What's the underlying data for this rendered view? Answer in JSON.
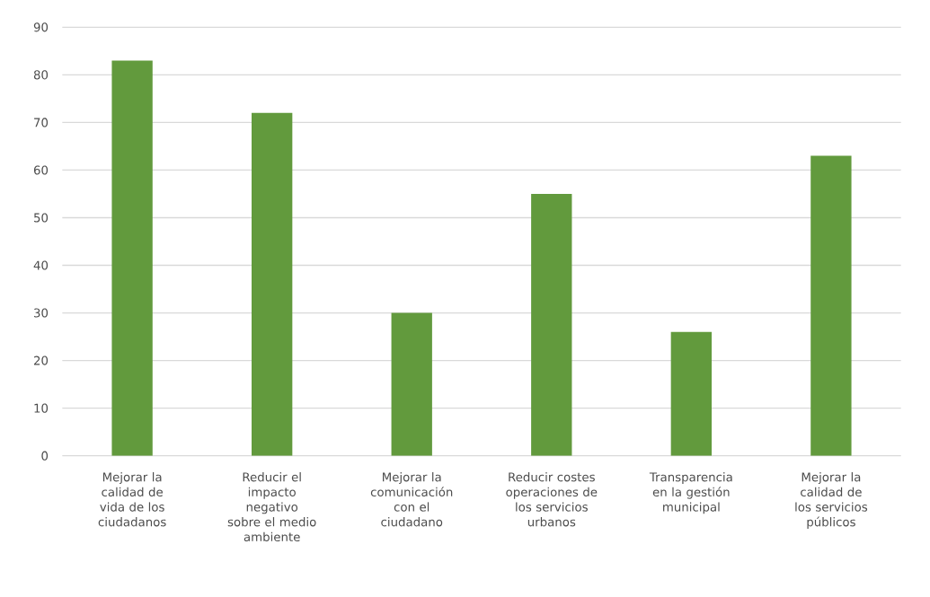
{
  "chart_data": {
    "type": "bar",
    "categories": [
      "Mejorar la calidad de vida de los ciudadanos",
      "Reducir el impacto negativo sobre el medio ambiente",
      "Mejorar la comunicación con el ciudadano",
      "Reducir costes operaciones de los servicios urbanos",
      "Transparencia en la gestión municipal",
      "Mejorar la calidad de los servicios públicos"
    ],
    "values": [
      83,
      72,
      30,
      55,
      26,
      63
    ],
    "color": "#629a3d",
    "ylim": [
      0,
      90
    ],
    "yticks": [
      0,
      10,
      20,
      30,
      40,
      50,
      60,
      70,
      80,
      90
    ],
    "grid": "y"
  }
}
